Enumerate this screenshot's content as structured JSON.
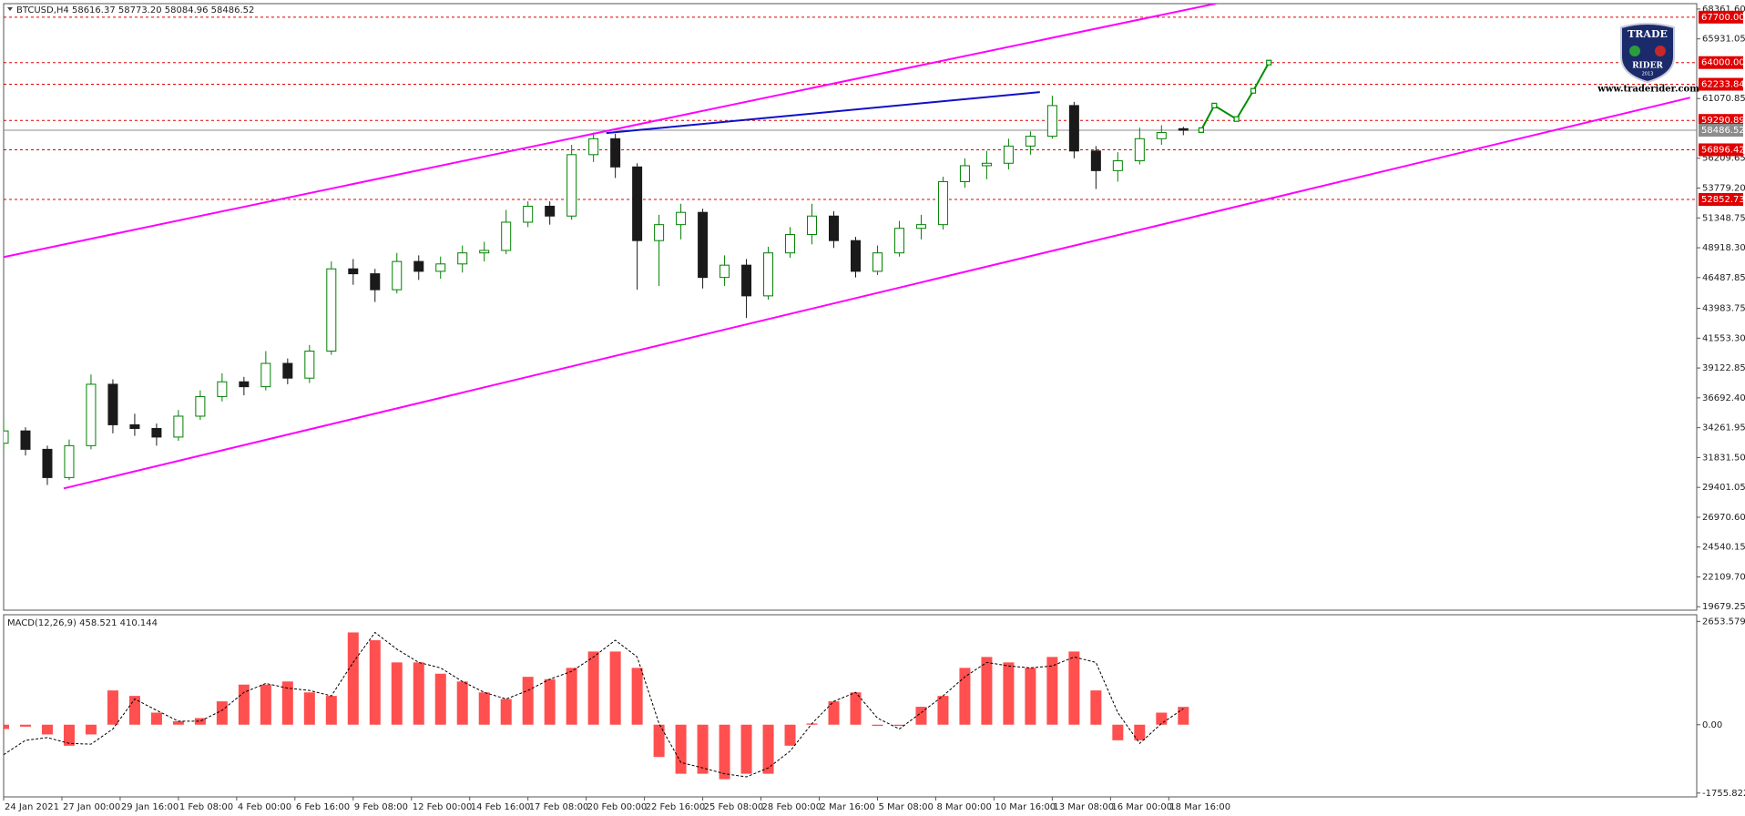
{
  "chart_data": [
    {
      "type": "candlestick",
      "title": "BTCUSD,H4  58616.37 58773.20 58084.96 58486.52",
      "x": [
        0,
        6,
        12,
        18,
        24,
        30,
        36,
        42,
        48,
        54,
        60,
        66,
        72,
        78,
        84,
        90,
        96,
        102,
        108,
        114,
        120,
        126,
        132,
        138,
        144,
        150,
        156,
        162,
        168,
        174,
        180,
        186,
        192,
        198,
        204,
        210,
        216,
        222,
        228,
        234,
        240,
        246,
        252,
        258,
        264,
        270,
        276,
        282,
        288,
        294,
        300,
        306,
        312,
        318,
        324
      ],
      "open": [
        33000,
        34000,
        32500,
        30200,
        32800,
        37800,
        34500,
        34200,
        33500,
        35200,
        36800,
        38000,
        37600,
        39500,
        38300,
        40500,
        47200,
        46800,
        45500,
        47800,
        47000,
        47600,
        48500,
        48700,
        51000,
        52300,
        51500,
        56500,
        57800,
        55500,
        49500,
        50800,
        51800,
        46500,
        47500,
        45000,
        48500,
        50000,
        51500,
        49500,
        47000,
        48500,
        50500,
        50800,
        54300,
        55600,
        55800,
        57200,
        58000,
        60500,
        56800,
        55200,
        56000,
        57800,
        58616.37
      ],
      "high": [
        34900,
        34300,
        32800,
        33300,
        38600,
        38200,
        35400,
        34600,
        35700,
        37300,
        38700,
        38400,
        40500,
        39900,
        41000,
        47800,
        48000,
        47200,
        48500,
        48300,
        48200,
        49100,
        49400,
        52000,
        52700,
        52700,
        57300,
        58300,
        58200,
        55800,
        51600,
        52500,
        52100,
        48300,
        48000,
        49000,
        50600,
        52500,
        51900,
        49800,
        49100,
        51100,
        51600,
        54700,
        56200,
        56800,
        57800,
        58400,
        61300,
        60800,
        57200,
        56700,
        58700,
        58900,
        58773.2
      ],
      "low": [
        32400,
        32000,
        29600,
        30000,
        32500,
        33800,
        33600,
        32800,
        33200,
        34900,
        36400,
        36900,
        37300,
        37800,
        37900,
        40200,
        45900,
        44500,
        45200,
        46300,
        46400,
        46900,
        47800,
        48400,
        50600,
        50800,
        51200,
        55900,
        54600,
        45500,
        45800,
        49600,
        45600,
        45800,
        43200,
        44700,
        48100,
        49200,
        48900,
        46500,
        46700,
        48200,
        49600,
        50400,
        53800,
        54500,
        55300,
        56500,
        57800,
        56200,
        53700,
        54300,
        55700,
        57300,
        58084.96
      ],
      "close": [
        34000,
        32500,
        30200,
        32800,
        37800,
        34500,
        34200,
        33500,
        35200,
        36800,
        38000,
        37600,
        39500,
        38300,
        40500,
        47200,
        46800,
        45500,
        47800,
        47000,
        47600,
        48500,
        48700,
        51000,
        52300,
        51500,
        56500,
        57800,
        55500,
        49500,
        50800,
        51800,
        46500,
        47500,
        45000,
        48500,
        50000,
        51500,
        49500,
        47000,
        48500,
        50500,
        50800,
        54300,
        55600,
        55800,
        57200,
        58000,
        60500,
        56800,
        55200,
        56000,
        57800,
        58300,
        58486.52
      ],
      "bull_color": "#008000",
      "bear_color": "#1a1a1a",
      "xlim": [
        0,
        465
      ],
      "ylim": [
        19400,
        68800
      ],
      "yticks": [
        {
          "value": 68361.6,
          "label": "68361.60"
        },
        65931.05,
        61070.85,
        56209.65,
        {
          "value": 53779.2,
          "label": "53779.20"
        },
        51348.75,
        {
          "value": 48918.3,
          "label": "48918.30"
        },
        46487.85,
        43983.75,
        {
          "value": 41553.3,
          "label": "41553.30"
        },
        39122.85,
        {
          "value": 36692.4,
          "label": "36692.40"
        },
        34261.95,
        {
          "value": 31831.5,
          "label": "31831.50"
        },
        29401.05,
        {
          "value": 26970.6,
          "label": "26970.60"
        },
        24540.15,
        {
          "value": 22109.7,
          "label": "22109.70"
        },
        19679.25
      ],
      "levels": [
        {
          "value": 67700,
          "label": "67700.00"
        },
        {
          "value": 64000,
          "label": "64000.00"
        },
        62233.84,
        59290.89,
        56896.42,
        52852.73
      ],
      "level_color": "#e00000",
      "price_line": 58486.52,
      "price_line_color": "#8c8c8c",
      "drawings": [
        {
          "color": "#ff00ff",
          "points": [
            [
              0,
              48160
            ],
            [
              333,
              68810
            ]
          ]
        },
        {
          "color": "#ff00ff",
          "points": [
            [
              16.5,
              29318
            ],
            [
              463.2,
              61148
            ]
          ]
        },
        {
          "color": "#1010c8",
          "points": [
            [
              165.5,
              58262
            ],
            [
              284.6,
              61599
            ]
          ]
        },
        {
          "color": "#009000",
          "points": [
            [
              328.9,
              58500
            ],
            [
              332.5,
              60500
            ],
            [
              338.6,
              59400
            ],
            [
              343.2,
              61700
            ],
            [
              347.5,
              64000
            ]
          ]
        }
      ]
    },
    {
      "type": "macd",
      "title": "MACD(12,26,9) 458.521 410.144",
      "x": [
        0,
        6,
        12,
        18,
        24,
        30,
        36,
        42,
        48,
        54,
        60,
        66,
        72,
        78,
        84,
        90,
        96,
        102,
        108,
        114,
        120,
        126,
        132,
        138,
        144,
        150,
        156,
        162,
        168,
        174,
        180,
        186,
        192,
        198,
        204,
        210,
        216,
        222,
        228,
        234,
        240,
        246,
        252,
        258,
        264,
        270,
        276,
        282,
        288,
        294,
        300,
        306,
        312,
        318,
        324
      ],
      "histogram": [
        -110,
        -50,
        -250,
        -540,
        -250,
        880,
        740,
        310,
        90,
        170,
        600,
        1030,
        1030,
        1110,
        830,
        740,
        2370,
        2170,
        1600,
        1600,
        1310,
        1110,
        830,
        660,
        1230,
        1170,
        1460,
        1880,
        1880,
        1460,
        -830,
        -1260,
        -1260,
        -1400,
        -1260,
        -1260,
        -540,
        30,
        600,
        830,
        -30,
        -30,
        460,
        740,
        1460,
        1740,
        1600,
        1460,
        1740,
        1880,
        880,
        -400,
        -400,
        310,
        458.521
      ],
      "signal": [
        -770,
        -400,
        -330,
        -480,
        -500,
        -110,
        660,
        370,
        90,
        90,
        370,
        830,
        1060,
        940,
        880,
        740,
        1600,
        2370,
        1940,
        1600,
        1460,
        1110,
        830,
        660,
        880,
        1170,
        1370,
        1740,
        2170,
        1740,
        30,
        -970,
        -1110,
        -1260,
        -1340,
        -1110,
        -680,
        30,
        600,
        830,
        170,
        -110,
        310,
        740,
        1230,
        1600,
        1510,
        1460,
        1510,
        1740,
        1600,
        310,
        -480,
        30,
        410.144
      ],
      "histogram_color": "#ff3030",
      "signal_color": "#000000",
      "xlim": [
        0,
        465
      ],
      "ylim": [
        -1854,
        2825
      ],
      "yticks": [
        2653.579,
        {
          "value": 0,
          "label": "0.00"
        },
        -1755.822
      ],
      "xticks": [
        {
          "value": 0,
          "label": "24 Jan 2021"
        },
        {
          "value": 16,
          "label": "27 Jan 00:00"
        },
        {
          "value": 32,
          "label": "29 Jan 16:00"
        },
        {
          "value": 48,
          "label": "1 Feb 08:00"
        },
        {
          "value": 64,
          "label": "4 Feb 00:00"
        },
        {
          "value": 80,
          "label": "6 Feb 16:00"
        },
        {
          "value": 96,
          "label": "9 Feb 08:00"
        },
        {
          "value": 112,
          "label": "12 Feb 00:00"
        },
        {
          "value": 128,
          "label": "14 Feb 16:00"
        },
        {
          "value": 144,
          "label": "17 Feb 08:00"
        },
        {
          "value": 160,
          "label": "20 Feb 00:00"
        },
        {
          "value": 176,
          "label": "22 Feb 16:00"
        },
        {
          "value": 192,
          "label": "25 Feb 08:00"
        },
        {
          "value": 208,
          "label": "28 Feb 00:00"
        },
        {
          "value": 224,
          "label": "2 Mar 16:00"
        },
        {
          "value": 240,
          "label": "5 Mar 08:00"
        },
        {
          "value": 256,
          "label": "8 Mar 00:00"
        },
        {
          "value": 272,
          "label": "10 Mar 16:00"
        },
        {
          "value": 288,
          "label": "13 Mar 08:00"
        },
        {
          "value": 304,
          "label": "16 Mar 00:00"
        },
        {
          "value": 320,
          "label": "18 Mar 16:00"
        }
      ]
    }
  ],
  "logo": {
    "line1": "TRADE",
    "line2": "RIDER",
    "year": "2013",
    "url": "www.traderider.com"
  }
}
